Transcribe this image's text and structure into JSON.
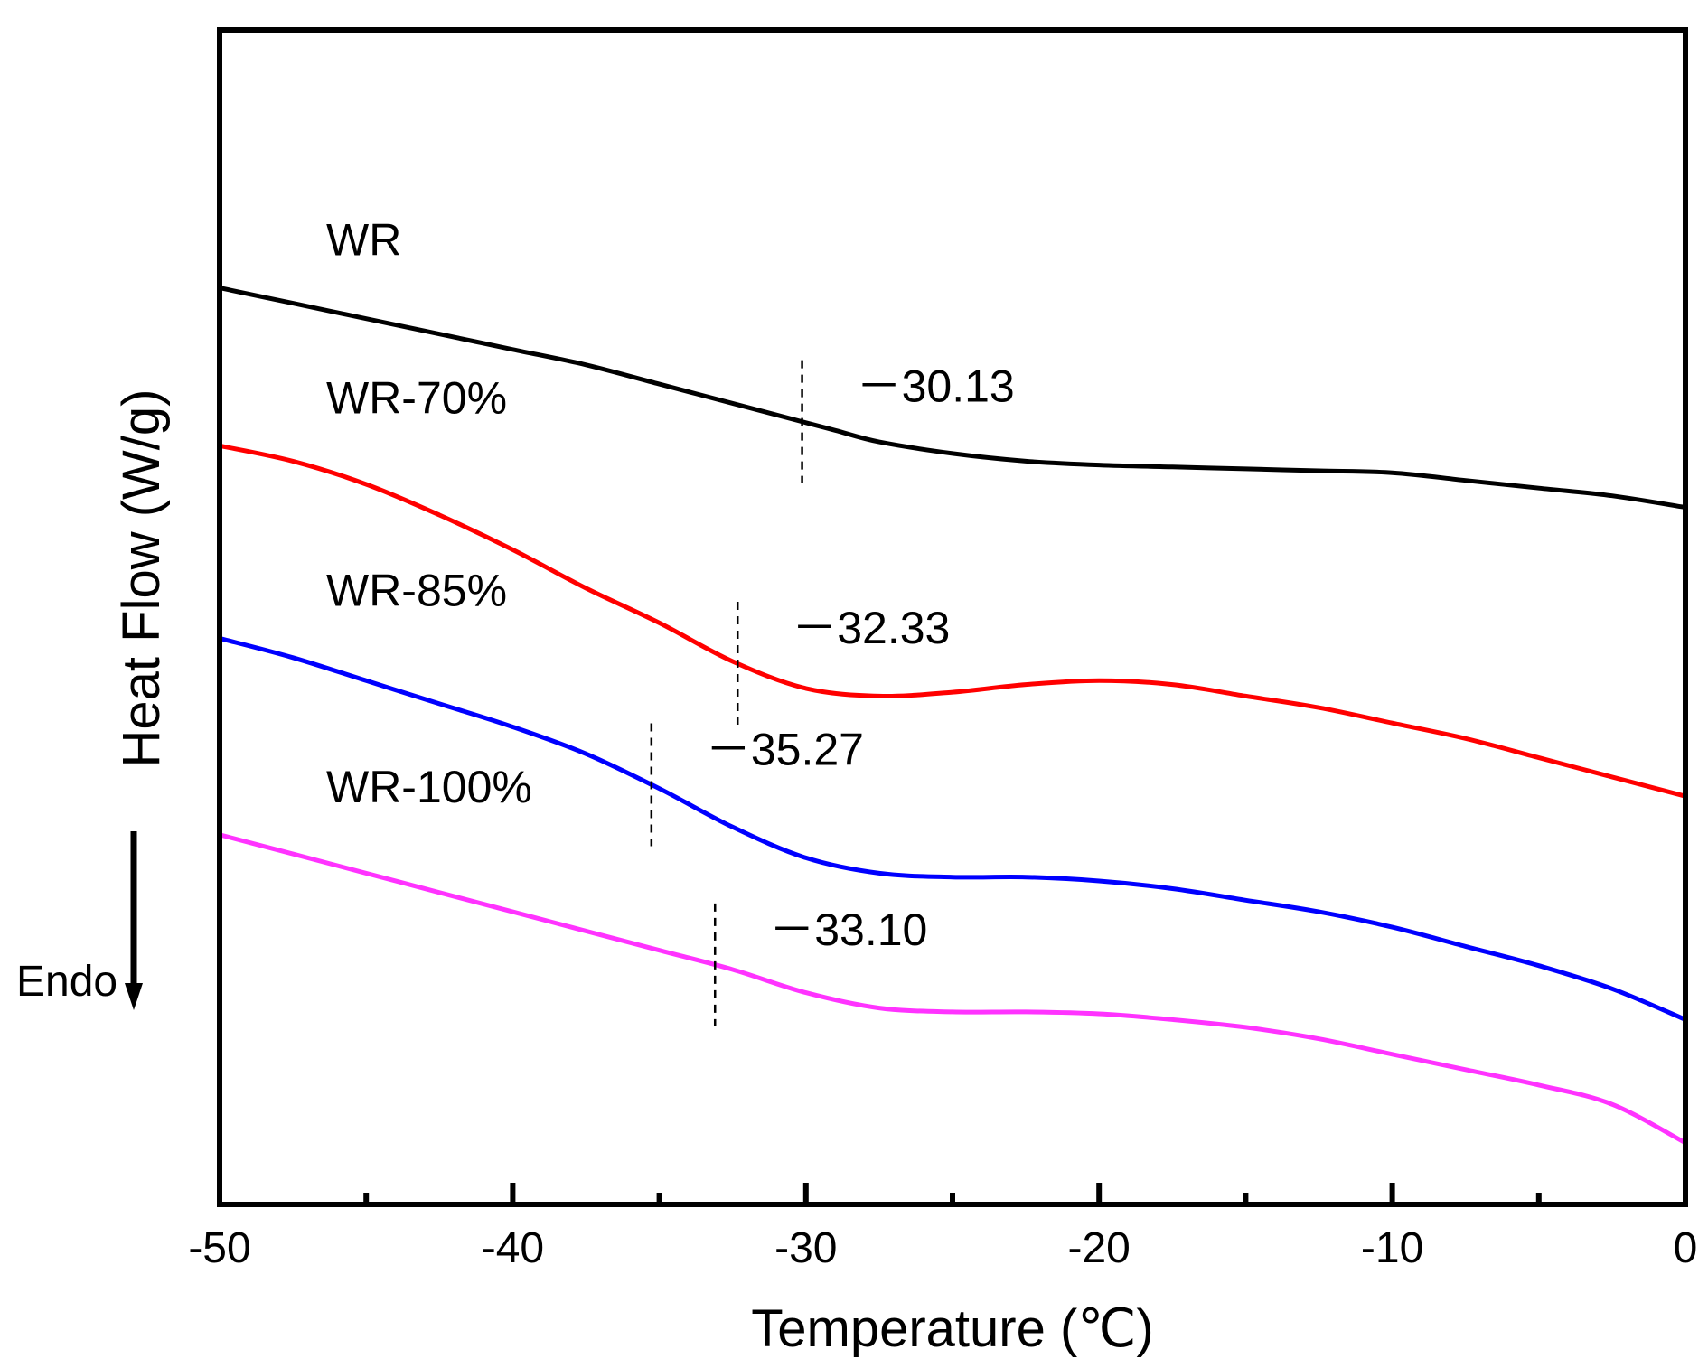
{
  "chart_data": {
    "type": "line",
    "title": "",
    "xlabel": "Temperature (℃)",
    "ylabel": "Heat Flow (W/g)",
    "direction_label": "Endo",
    "xlim": [
      -50,
      0
    ],
    "ylim": [
      0,
      30.5
    ],
    "x_ticks": [
      -50,
      -40,
      -30,
      -20,
      -10,
      0
    ],
    "x_tick_labels": [
      "-50",
      "-40",
      "-30",
      "-20",
      "-10",
      "0"
    ],
    "x_minor_ticks": [
      -45,
      -35,
      -25,
      -15,
      -5
    ],
    "series": [
      {
        "name": "WR",
        "color": "#000000",
        "x": [
          -50,
          -47.5,
          -45,
          -42.5,
          -40,
          -37.5,
          -35,
          -32.5,
          -30,
          -29,
          -27.5,
          -25,
          -22.5,
          -20,
          -17.5,
          -15,
          -12.5,
          -10,
          -7.5,
          -5,
          -2.5,
          0
        ],
        "y": [
          23.8,
          23.4,
          23.0,
          22.6,
          22.2,
          21.8,
          21.3,
          20.8,
          20.3,
          20.1,
          19.8,
          19.5,
          19.3,
          19.2,
          19.15,
          19.1,
          19.05,
          19.0,
          18.8,
          18.6,
          18.4,
          18.1
        ],
        "tg": -30.13,
        "tg_label": "－30.13"
      },
      {
        "name": "WR-70%",
        "color": "#ff0000",
        "x": [
          -50,
          -47.5,
          -45,
          -42.5,
          -40,
          -37.5,
          -35,
          -32.5,
          -30,
          -27.5,
          -25,
          -22.5,
          -20,
          -17.5,
          -15,
          -12.5,
          -10,
          -7.5,
          -5,
          -2.5,
          0
        ],
        "y": [
          19.7,
          19.3,
          18.7,
          17.9,
          17.0,
          16.0,
          15.1,
          14.1,
          13.4,
          13.2,
          13.3,
          13.5,
          13.6,
          13.5,
          13.2,
          12.9,
          12.5,
          12.1,
          11.6,
          11.1,
          10.6
        ],
        "tg": -32.33,
        "tg_label": "－32.33"
      },
      {
        "name": "WR-85%",
        "color": "#0000ff",
        "x": [
          -50,
          -47.5,
          -45,
          -42.5,
          -40,
          -37.5,
          -35,
          -32.5,
          -30,
          -27.5,
          -25,
          -22.5,
          -20,
          -17.5,
          -15,
          -12.5,
          -10,
          -7.5,
          -5,
          -2.5,
          0
        ],
        "y": [
          14.7,
          14.2,
          13.6,
          13.0,
          12.4,
          11.7,
          10.8,
          9.8,
          9.0,
          8.6,
          8.5,
          8.5,
          8.4,
          8.2,
          7.9,
          7.6,
          7.2,
          6.7,
          6.2,
          5.6,
          4.8
        ],
        "tg": -35.27,
        "tg_label": "－35.27"
      },
      {
        "name": "WR-100%",
        "color": "#ff33ff",
        "x": [
          -50,
          -47.5,
          -45,
          -42.5,
          -40,
          -37.5,
          -35,
          -32.5,
          -30,
          -27.5,
          -25,
          -22.5,
          -20,
          -17.5,
          -15,
          -12.5,
          -10,
          -7.5,
          -5,
          -2.5,
          0
        ],
        "y": [
          9.6,
          9.1,
          8.6,
          8.1,
          7.6,
          7.1,
          6.6,
          6.1,
          5.5,
          5.1,
          5.0,
          5.0,
          4.95,
          4.8,
          4.6,
          4.3,
          3.9,
          3.5,
          3.1,
          2.6,
          1.6
        ],
        "tg": -33.1,
        "tg_label": "－33.10"
      }
    ]
  }
}
